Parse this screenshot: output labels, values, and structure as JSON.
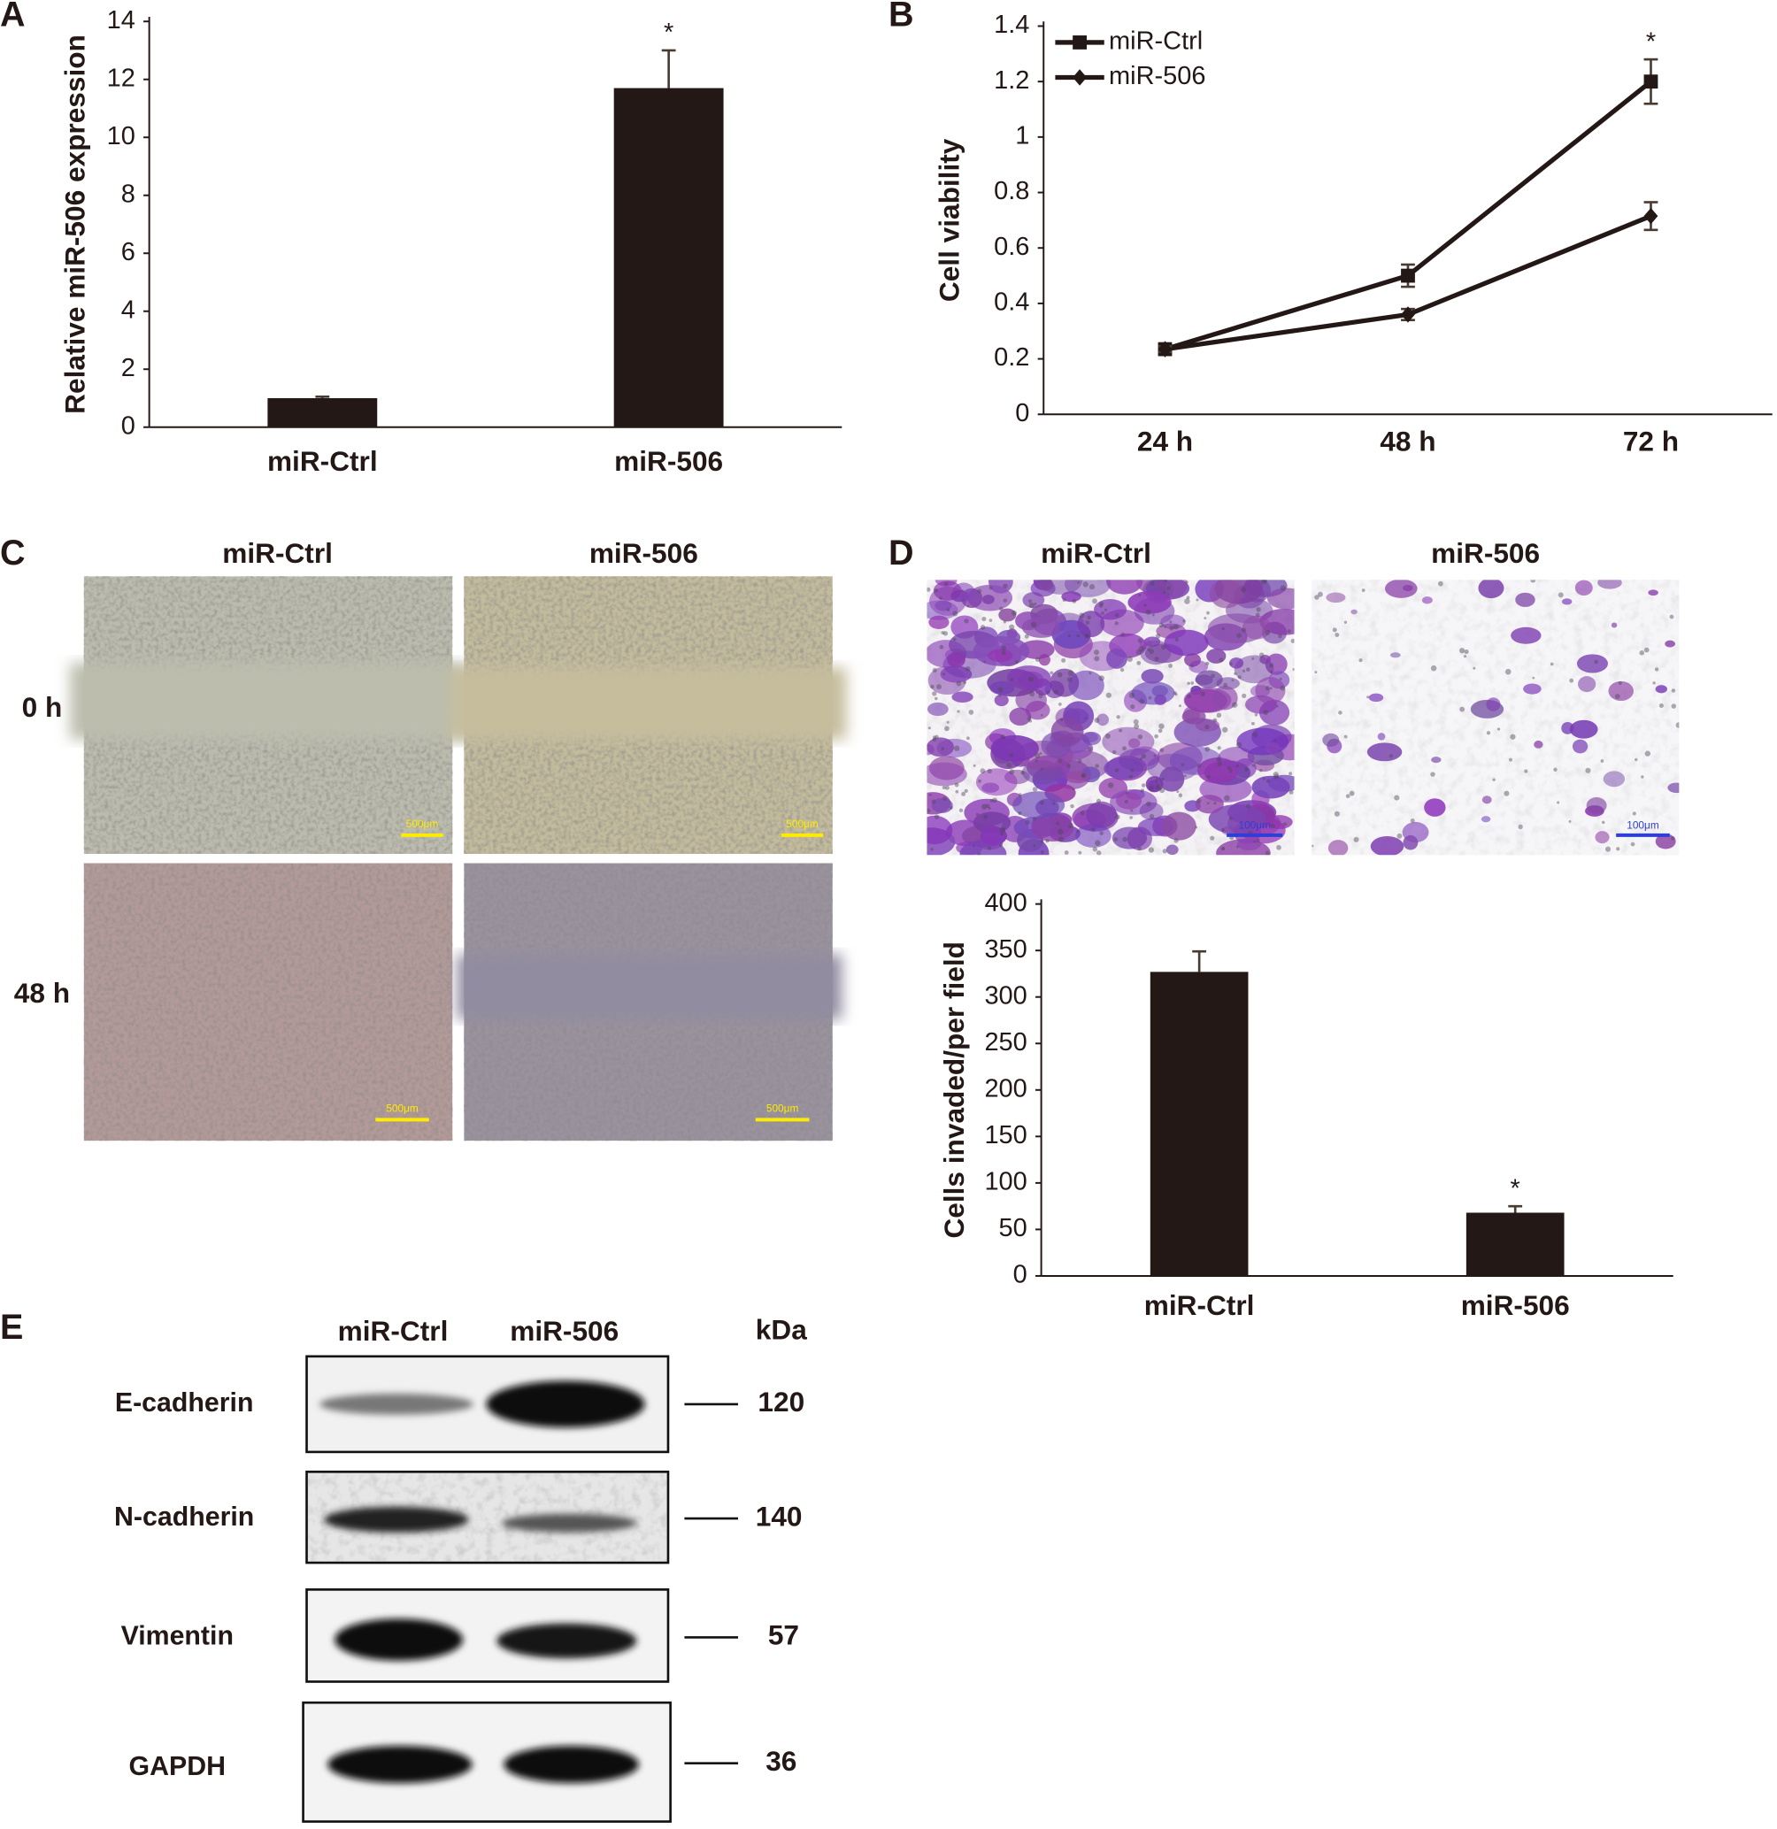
{
  "panel_labels": [
    "A",
    "B",
    "C",
    "D",
    "E"
  ],
  "chart_data": [
    {
      "type": "bar",
      "y_label": "Relative miR-506 expression",
      "categories": [
        "miR-Ctrl",
        "miR-506"
      ],
      "values": [
        1.0,
        11.7
      ],
      "errors": [
        0.05,
        1.3
      ],
      "color": "#231815",
      "ylim": [
        0,
        14
      ],
      "yticks": [
        0,
        2,
        4,
        6,
        8,
        10,
        12,
        14
      ],
      "annotations": [
        {
          "text": "*",
          "x": "miR-506"
        }
      ]
    },
    {
      "type": "line",
      "y_label": "Cell viability",
      "categories": [
        "24 h",
        "48 h",
        "72 h"
      ],
      "series": [
        {
          "name": "miR-Ctrl",
          "color": "#231815",
          "marker": "square",
          "values": [
            0.235,
            0.5,
            1.2
          ],
          "errors": [
            0.01,
            0.04,
            0.08
          ]
        },
        {
          "name": "miR-506",
          "color": "#231815",
          "marker": "diamond",
          "values": [
            0.235,
            0.36,
            0.715
          ],
          "errors": [
            0.01,
            0.02,
            0.05
          ]
        }
      ],
      "ylim": [
        0,
        1.4
      ],
      "yticks": [
        0,
        0.2,
        0.4,
        0.6,
        0.8,
        1,
        1.2,
        1.4
      ],
      "legend": "upper left",
      "annotations": [
        {
          "text": "*",
          "x": "72 h"
        }
      ]
    },
    {
      "type": "bar",
      "y_label": "Cells invaded/per field",
      "categories": [
        "miR-Ctrl",
        "miR-506"
      ],
      "values": [
        327,
        68
      ],
      "errors": [
        22,
        7
      ],
      "color": "#231815",
      "ylim": [
        0,
        400
      ],
      "yticks": [
        0,
        50,
        100,
        150,
        200,
        250,
        300,
        350,
        400
      ],
      "annotations": [
        {
          "text": "*",
          "x": "miR-506"
        }
      ]
    }
  ],
  "wound_healing": {
    "columns": [
      "miR-Ctrl",
      "miR-506"
    ],
    "rows": [
      "0 h",
      "48 h"
    ],
    "scale_bar": "500μm"
  },
  "invasion_images": {
    "columns": [
      "miR-Ctrl",
      "miR-506"
    ],
    "scale_bar": "100μm"
  },
  "western_blot": {
    "columns": [
      "miR-Ctrl",
      "miR-506"
    ],
    "unit": "kDa",
    "proteins": [
      {
        "name": "E-cadherin",
        "kda": 120
      },
      {
        "name": "N-cadherin",
        "kda": 140
      },
      {
        "name": "Vimentin",
        "kda": 57
      },
      {
        "name": "GAPDH",
        "kda": 36
      }
    ]
  }
}
